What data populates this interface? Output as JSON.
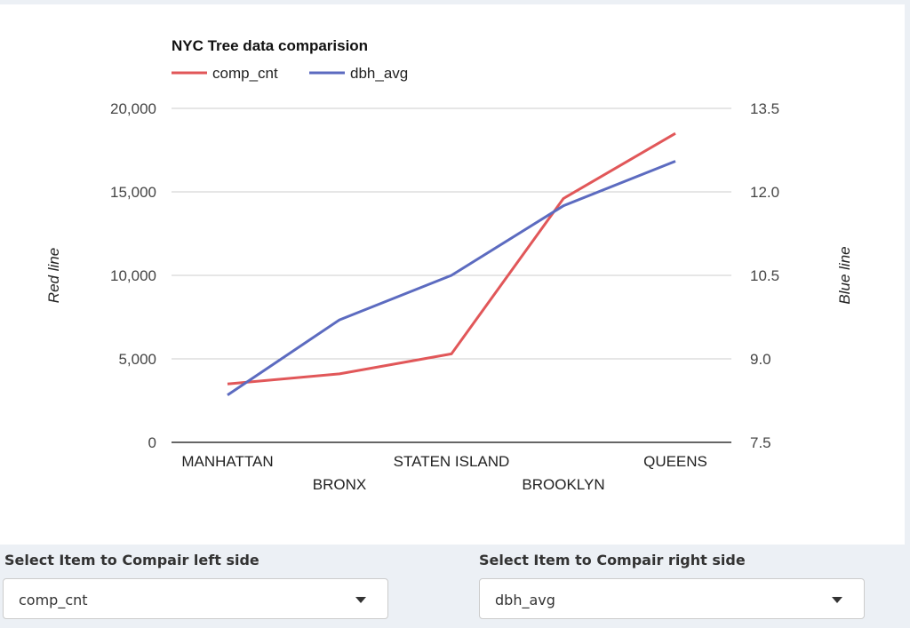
{
  "chart_data": {
    "type": "line",
    "title": "NYC Tree data comparision",
    "categories": [
      "MANHATTAN",
      "BRONX",
      "STATEN ISLAND",
      "BROOKLYN",
      "QUEENS"
    ],
    "series": [
      {
        "name": "comp_cnt",
        "axis": "left",
        "color": "#e15759",
        "values": [
          3500,
          4100,
          5300,
          14600,
          18500
        ]
      },
      {
        "name": "dbh_avg",
        "axis": "right",
        "color": "#5c6bc0",
        "values": [
          8.35,
          9.7,
          10.5,
          11.75,
          12.55
        ]
      }
    ],
    "ylabel": "Red line",
    "y2label": "Blue line",
    "ylim": [
      0,
      20000
    ],
    "y2lim": [
      7.5,
      13.5
    ],
    "yticks": [
      "0",
      "5,000",
      "10,000",
      "15,000",
      "20,000"
    ],
    "y2ticks": [
      "7.5",
      "9.0",
      "10.5",
      "12.0",
      "13.5"
    ],
    "grid": true,
    "legend": "top-left"
  },
  "controls": {
    "left": {
      "label": "Select Item to Compair left side",
      "value": "comp_cnt"
    },
    "right": {
      "label": "Select Item to Compair right side",
      "value": "dbh_avg"
    }
  }
}
